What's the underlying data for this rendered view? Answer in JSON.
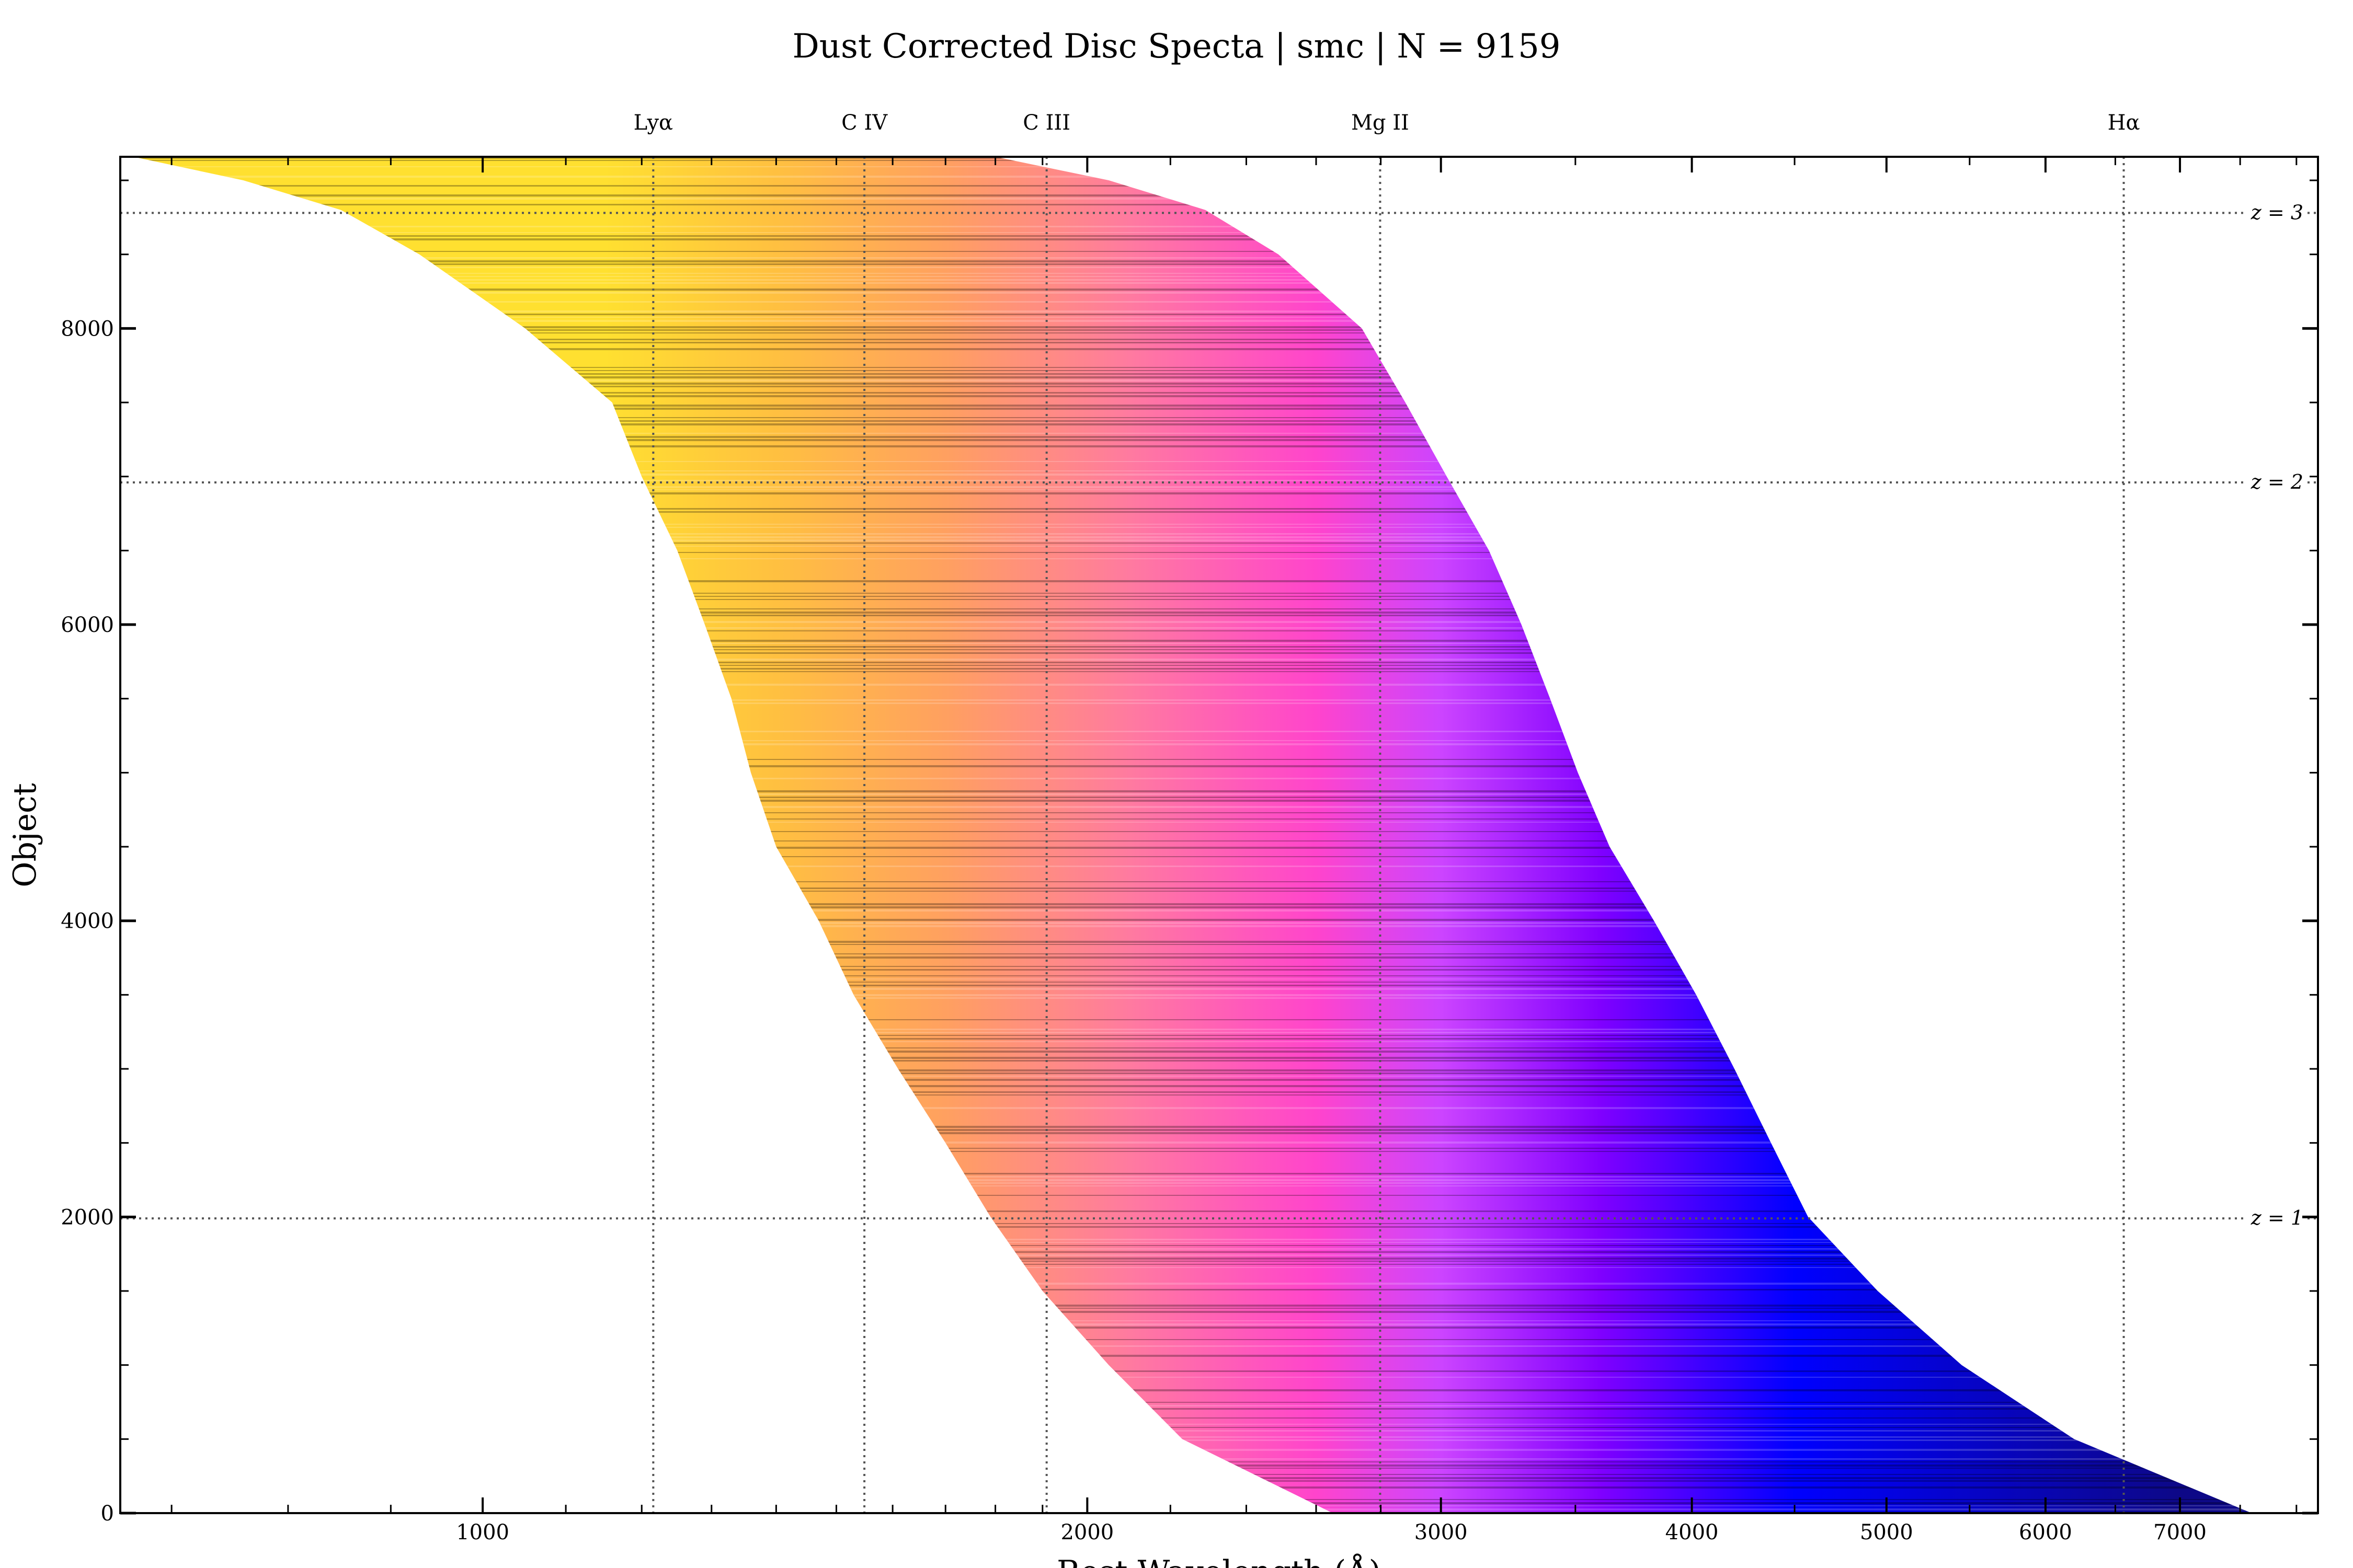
{
  "chart_data": {
    "type": "heatmap",
    "title": "Dust Corrected Disc Specta | smc | N = 9159",
    "xlabel": "Rest Wavelength (Å)",
    "ylabel": "Object",
    "x_scale": "log",
    "xlim": [
      660,
      8200
    ],
    "ylim": [
      0,
      9159
    ],
    "x_ticks": [
      {
        "value": 1000,
        "label": "1000"
      },
      {
        "value": 2000,
        "label": "2000"
      },
      {
        "value": 3000,
        "label": "3000"
      },
      {
        "value": 4000,
        "label": "4000"
      },
      {
        "value": 5000,
        "label": "5000"
      },
      {
        "value": 6000,
        "label": "6000"
      },
      {
        "value": 7000,
        "label": "7000"
      }
    ],
    "y_ticks": [
      {
        "value": 0,
        "label": "0"
      },
      {
        "value": 2000,
        "label": "2000"
      },
      {
        "value": 4000,
        "label": "4000"
      },
      {
        "value": 6000,
        "label": "6000"
      },
      {
        "value": 8000,
        "label": "8000"
      }
    ],
    "emission_lines": [
      {
        "name": "Lyα",
        "wavelength": 1216
      },
      {
        "name": "C IV",
        "wavelength": 1549
      },
      {
        "name": "C III",
        "wavelength": 1909
      },
      {
        "name": "Mg II",
        "wavelength": 2798
      },
      {
        "name": "Hα",
        "wavelength": 6563
      }
    ],
    "redshift_lines": [
      {
        "label": "z = 1",
        "object": 1990
      },
      {
        "label": "z = 2",
        "object": 6960
      },
      {
        "label": "z = 3",
        "object": 8780
      }
    ],
    "coverage": [
      {
        "object": 0,
        "lo": 2650,
        "hi": 7600
      },
      {
        "object": 500,
        "lo": 2230,
        "hi": 6200
      },
      {
        "object": 1000,
        "lo": 2050,
        "hi": 5450
      },
      {
        "object": 1500,
        "lo": 1900,
        "hi": 4950
      },
      {
        "object": 2000,
        "lo": 1790,
        "hi": 4570
      },
      {
        "object": 2500,
        "lo": 1700,
        "hi": 4380
      },
      {
        "object": 3000,
        "lo": 1610,
        "hi": 4200
      },
      {
        "object": 3500,
        "lo": 1530,
        "hi": 4020
      },
      {
        "object": 4000,
        "lo": 1470,
        "hi": 3830
      },
      {
        "object": 4500,
        "lo": 1400,
        "hi": 3640
      },
      {
        "object": 5000,
        "lo": 1360,
        "hi": 3510
      },
      {
        "object": 5500,
        "lo": 1330,
        "hi": 3400
      },
      {
        "object": 6000,
        "lo": 1290,
        "hi": 3290
      },
      {
        "object": 6500,
        "lo": 1250,
        "hi": 3170
      },
      {
        "object": 7000,
        "lo": 1200,
        "hi": 3020
      },
      {
        "object": 7500,
        "lo": 1160,
        "hi": 2880
      },
      {
        "object": 8000,
        "lo": 1050,
        "hi": 2740
      },
      {
        "object": 8500,
        "lo": 930,
        "hi": 2490
      },
      {
        "object": 8800,
        "lo": 850,
        "hi": 2290
      },
      {
        "object": 9000,
        "lo": 760,
        "hi": 2050
      },
      {
        "object": 9159,
        "lo": 670,
        "hi": 1800
      }
    ],
    "colormap": [
      "#0d0887",
      "#0000ff",
      "#8000ff",
      "#cc44ff",
      "#ff44cc",
      "#ff7aa0",
      "#ffa060",
      "#ffc040",
      "#ffe030"
    ],
    "color_gradient_wavelengths": [
      7000,
      4500,
      3600,
      3000,
      2600,
      2100,
      1700,
      1400,
      1150
    ]
  }
}
